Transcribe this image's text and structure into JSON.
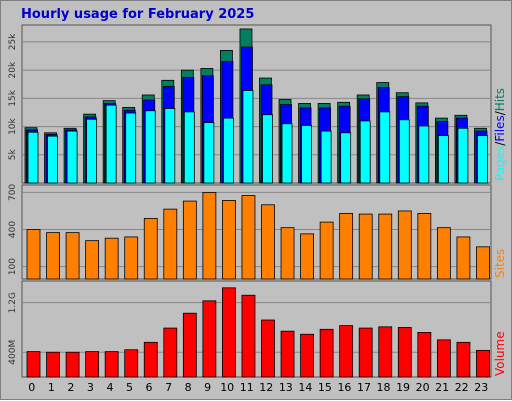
{
  "title": "Hourly usage for February 2025",
  "colors": {
    "hits": "#008060",
    "files": "#0000ff",
    "pages": "#00ffff",
    "sites": "#ff8000",
    "volume": "#ff0000",
    "title": "#0000cc"
  },
  "chart_data": [
    {
      "type": "bar",
      "categories": [
        "0",
        "1",
        "2",
        "3",
        "4",
        "5",
        "6",
        "7",
        "8",
        "9",
        "10",
        "11",
        "12",
        "13",
        "14",
        "15",
        "16",
        "17",
        "18",
        "19",
        "20",
        "21",
        "22",
        "23"
      ],
      "ylim": [
        0,
        28000
      ],
      "yticks": [
        5000,
        10000,
        15000,
        20000,
        25000
      ],
      "ytick_labels": [
        "5k",
        "10k",
        "15k",
        "20k",
        "25k"
      ],
      "series_label_parts": [
        "Pages",
        "/",
        "Files",
        "/",
        "Hits"
      ],
      "series": [
        {
          "name": "Hits",
          "values": [
            9800,
            8900,
            9700,
            12200,
            14600,
            13400,
            15600,
            18200,
            20000,
            20300,
            23500,
            27300,
            18600,
            14800,
            14100,
            14100,
            14300,
            15600,
            17800,
            16000,
            14200,
            11500,
            12000,
            9700
          ]
        },
        {
          "name": "Files",
          "values": [
            9400,
            8600,
            9400,
            11700,
            14100,
            12900,
            14700,
            17100,
            18700,
            19000,
            21500,
            24100,
            17400,
            13900,
            13300,
            13300,
            13600,
            14900,
            16900,
            15300,
            13600,
            10900,
            11500,
            9200
          ]
        },
        {
          "name": "Pages",
          "values": [
            9000,
            8300,
            9200,
            11300,
            13800,
            12400,
            12800,
            13200,
            12600,
            10700,
            11500,
            16400,
            12100,
            10500,
            10200,
            9200,
            8900,
            11000,
            12600,
            11200,
            10100,
            8400,
            9700,
            8400
          ]
        }
      ]
    },
    {
      "type": "bar",
      "categories": [
        "0",
        "1",
        "2",
        "3",
        "4",
        "5",
        "6",
        "7",
        "8",
        "9",
        "10",
        "11",
        "12",
        "13",
        "14",
        "15",
        "16",
        "17",
        "18",
        "19",
        "20",
        "21",
        "22",
        "23"
      ],
      "ylim": [
        0,
        760
      ],
      "yticks": [
        100,
        400,
        700
      ],
      "ytick_labels": [
        "100",
        "400",
        "700"
      ],
      "series": [
        {
          "name": "Sites",
          "values": [
            400,
            375,
            375,
            310,
            330,
            340,
            490,
            565,
            630,
            700,
            635,
            675,
            600,
            415,
            365,
            460,
            530,
            525,
            525,
            550,
            530,
            415,
            340,
            260
          ]
        }
      ]
    },
    {
      "type": "bar",
      "categories": [
        "0",
        "1",
        "2",
        "3",
        "4",
        "5",
        "6",
        "7",
        "8",
        "9",
        "10",
        "11",
        "12",
        "13",
        "14",
        "15",
        "16",
        "17",
        "18",
        "19",
        "20",
        "21",
        "22",
        "23"
      ],
      "ylim": [
        0,
        1550
      ],
      "yticks": [
        400,
        1200
      ],
      "ytick_labels": [
        "400M",
        "1.2G"
      ],
      "series": [
        {
          "name": "Volume",
          "values": [
            410,
            400,
            400,
            410,
            410,
            440,
            560,
            790,
            1030,
            1230,
            1440,
            1320,
            920,
            740,
            690,
            770,
            830,
            790,
            810,
            800,
            720,
            600,
            560,
            430
          ]
        }
      ]
    }
  ]
}
